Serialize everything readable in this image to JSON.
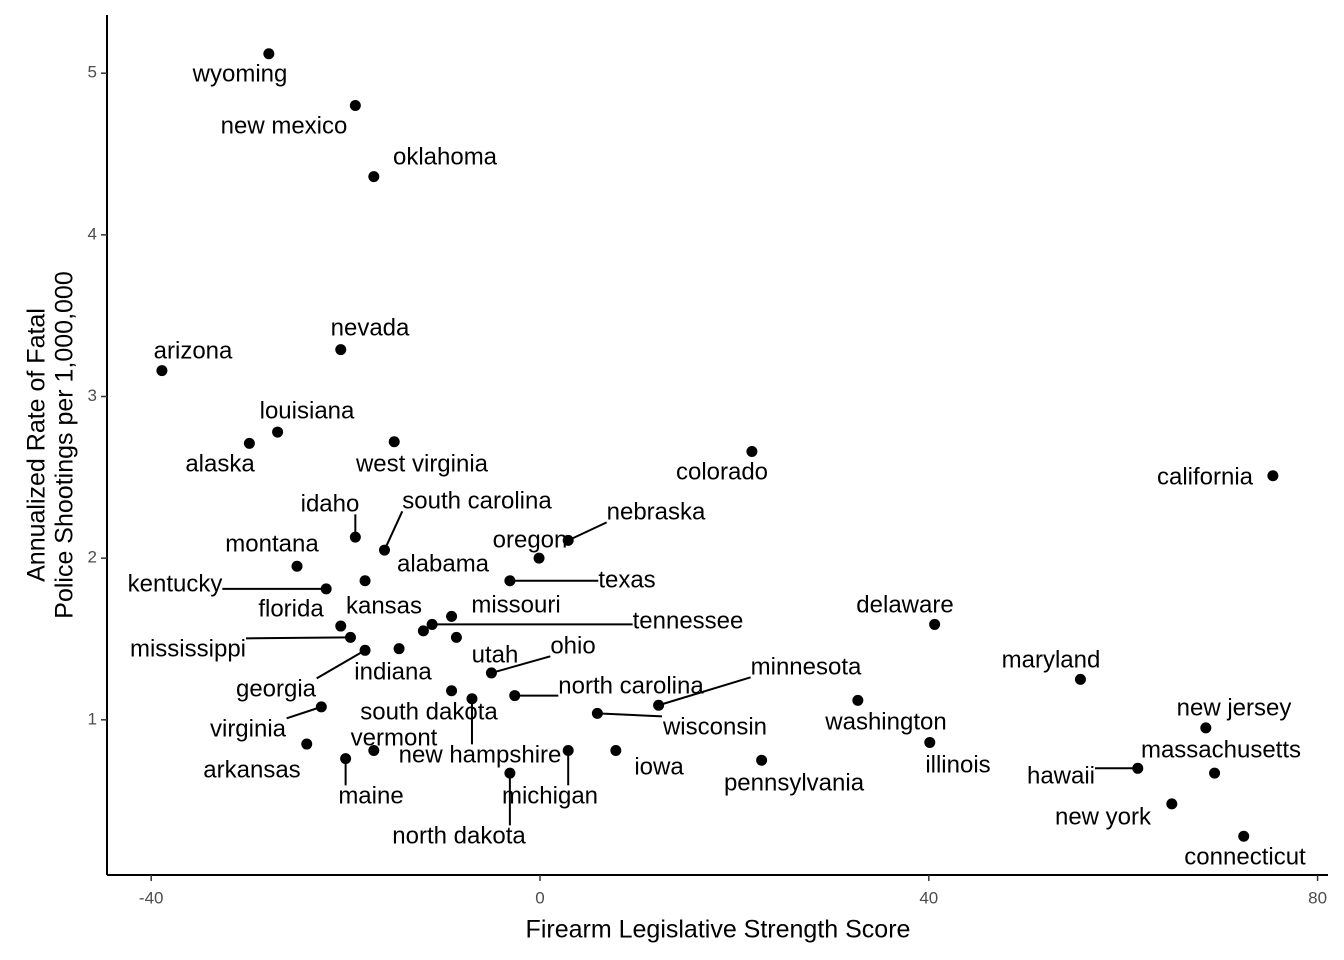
{
  "chart_data": {
    "type": "scatter",
    "x_label": "Firearm Legislative Strength Score",
    "y_label": [
      "Annualized Rate of Fatal",
      "Police Shootings per 1,000,000"
    ],
    "color": "#000000",
    "xlim": [
      -44.55,
      81.07
    ],
    "ylim": [
      0.04,
      5.36
    ],
    "xticks": [
      -40,
      0,
      40,
      80
    ],
    "yticks": [
      1,
      2,
      3,
      4,
      5
    ],
    "labels": [
      "wyoming",
      "new mexico",
      "oklahoma",
      "nevada",
      "arizona",
      "louisiana",
      "alaska",
      "west virginia",
      "colorado",
      "california",
      "idaho",
      "south carolina",
      "nebraska",
      "oregon",
      "montana",
      "alabama",
      "texas",
      "kentucky",
      "florida",
      "kansas",
      "missouri",
      "tennessee",
      "delaware",
      "mississippi",
      "utah",
      "ohio",
      "indiana",
      "minnesota",
      "maryland",
      "georgia",
      "north carolina",
      "south dakota",
      "washington",
      "virginia",
      "wisconsin",
      "new jersey",
      "vermont",
      "massachusetts",
      "arkansas",
      "new hampshire",
      "illinois",
      "iowa",
      "pennsylvania",
      "hawaii",
      "maine",
      "michigan",
      "north dakota",
      "new york",
      "connecticut"
    ],
    "x": [
      -27.9,
      -19.0,
      -17.1,
      -20.5,
      -38.9,
      -27.0,
      -29.9,
      -15.0,
      21.8,
      75.4,
      -19.0,
      -16.0,
      2.9,
      -0.1,
      -25.0,
      -18.0,
      -3.1,
      -22.0,
      -20.5,
      -12.0,
      -9.1,
      -11.1,
      40.6,
      -19.5,
      -8.6,
      -5.0,
      -14.5,
      12.2,
      55.6,
      -18.0,
      -2.6,
      -9.1,
      32.7,
      -22.5,
      5.9,
      68.5,
      -17.1,
      69.4,
      -24.0,
      -7.0,
      40.1,
      7.8,
      22.8,
      61.5,
      -20.0,
      2.9,
      -3.1,
      65.0,
      72.4
    ],
    "y": [
      5.12,
      4.8,
      4.36,
      3.29,
      3.16,
      2.78,
      2.71,
      2.72,
      2.66,
      2.51,
      2.13,
      2.05,
      2.11,
      2.0,
      1.95,
      1.86,
      1.86,
      1.81,
      1.58,
      1.55,
      1.64,
      1.59,
      1.59,
      1.51,
      1.51,
      1.29,
      1.44,
      1.09,
      1.25,
      1.43,
      1.15,
      1.18,
      1.12,
      1.08,
      1.04,
      0.95,
      0.81,
      0.67,
      0.85,
      1.13,
      0.86,
      0.81,
      0.75,
      0.7,
      0.76,
      0.81,
      0.67,
      0.48,
      0.28
    ]
  }
}
